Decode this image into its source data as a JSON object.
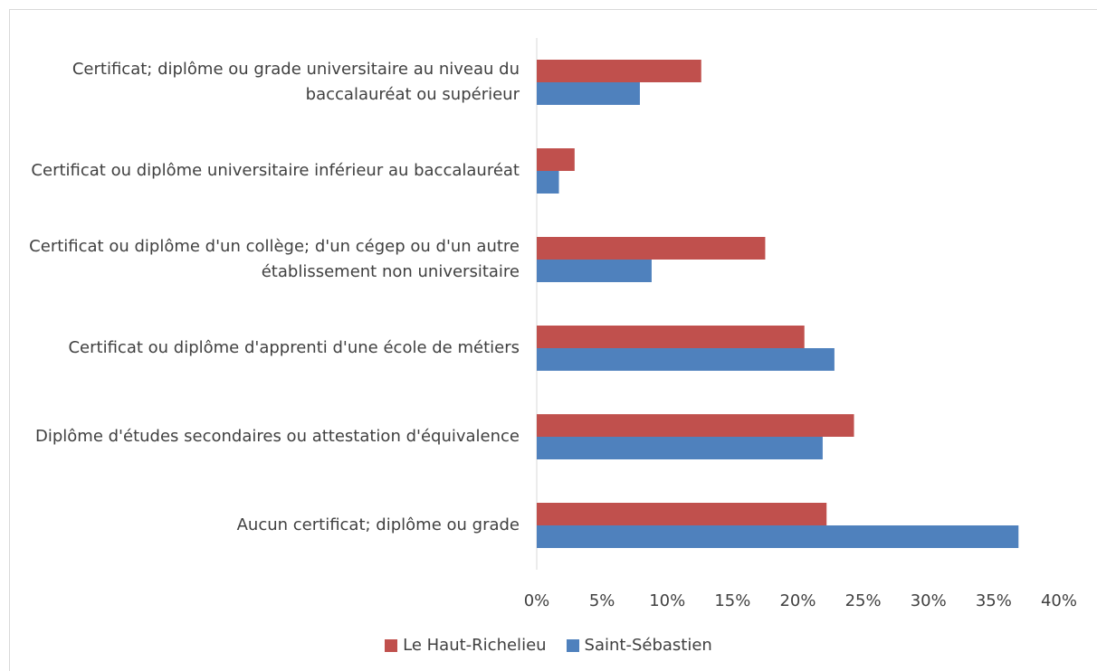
{
  "chart_data": {
    "type": "hbar",
    "categories": [
      "Certificat; diplôme ou grade universitaire au niveau du baccalauréat ou supérieur",
      "Certificat ou diplôme universitaire inférieur au baccalauréat",
      "Certificat ou diplôme d'un collège; d'un cégep ou d'un autre établissement non universitaire",
      "Certificat ou diplôme d'apprenti d'une école de métiers",
      "Diplôme d'études secondaires ou attestation d'équivalence",
      "Aucun certificat; diplôme ou grade"
    ],
    "series": [
      {
        "name": "Le Haut-Richelieu",
        "color": "#c0504d",
        "values": [
          12.6,
          2.9,
          17.5,
          20.5,
          24.3,
          22.2
        ]
      },
      {
        "name": "Saint-Sébastien",
        "color": "#4f81bd",
        "values": [
          7.9,
          1.7,
          8.8,
          22.8,
          21.9,
          36.9
        ]
      }
    ],
    "xlim": [
      0,
      40
    ],
    "xticks": [
      {
        "value": 0,
        "label": "0%"
      },
      {
        "value": 5,
        "label": "5%"
      },
      {
        "value": 10,
        "label": "10%"
      },
      {
        "value": 15,
        "label": "15%"
      },
      {
        "value": 20,
        "label": "20%"
      },
      {
        "value": 25,
        "label": "25%"
      },
      {
        "value": 30,
        "label": "30%"
      },
      {
        "value": 35,
        "label": "35%"
      },
      {
        "value": 40,
        "label": "40%"
      }
    ],
    "legend": "bottom"
  }
}
